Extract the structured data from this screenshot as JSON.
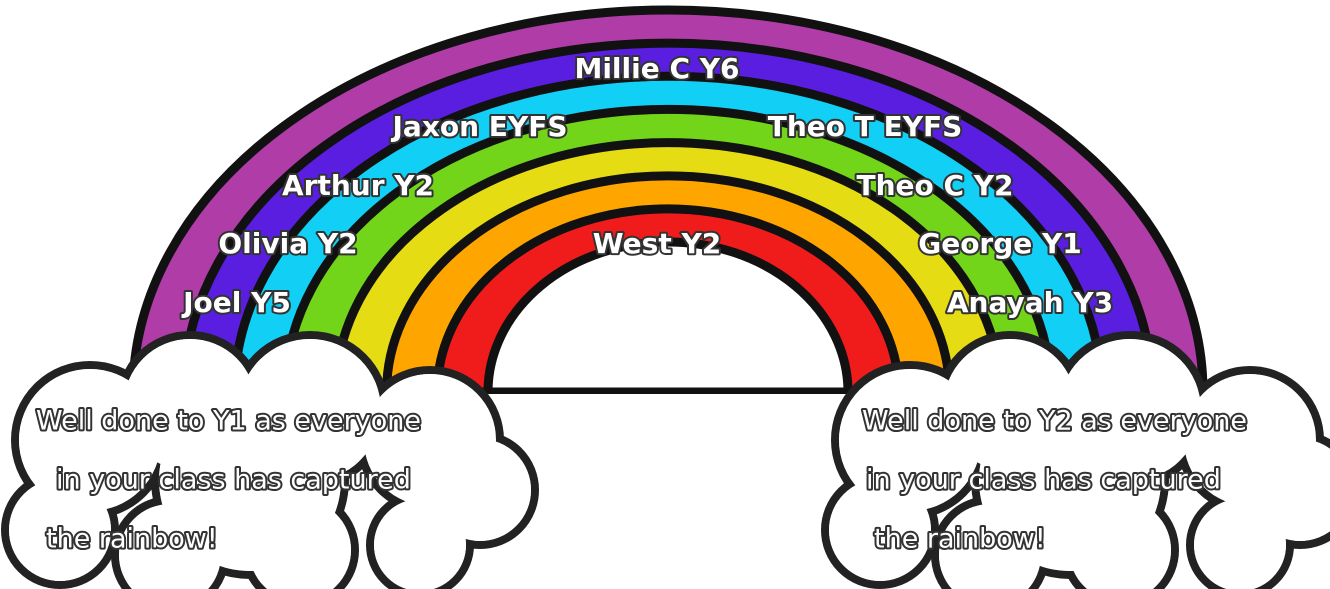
{
  "names": [
    "Millie C Y6",
    "Jaxon  EYFS",
    "Theo T  EYFS",
    "Arthur Y2",
    "Theo C Y2",
    "Olivia Y2",
    "West Y2",
    "George Y1",
    "Joel Y5",
    "Anayah Y3"
  ],
  "clouds": [
    {
      "lines": [
        "Well done to Y1 as everyone",
        "in your class has captured",
        "the rainbow!"
      ]
    },
    {
      "lines": [
        "Well done to Y2 as everyone",
        "in your class has captured",
        "the rainbow!"
      ]
    }
  ]
}
